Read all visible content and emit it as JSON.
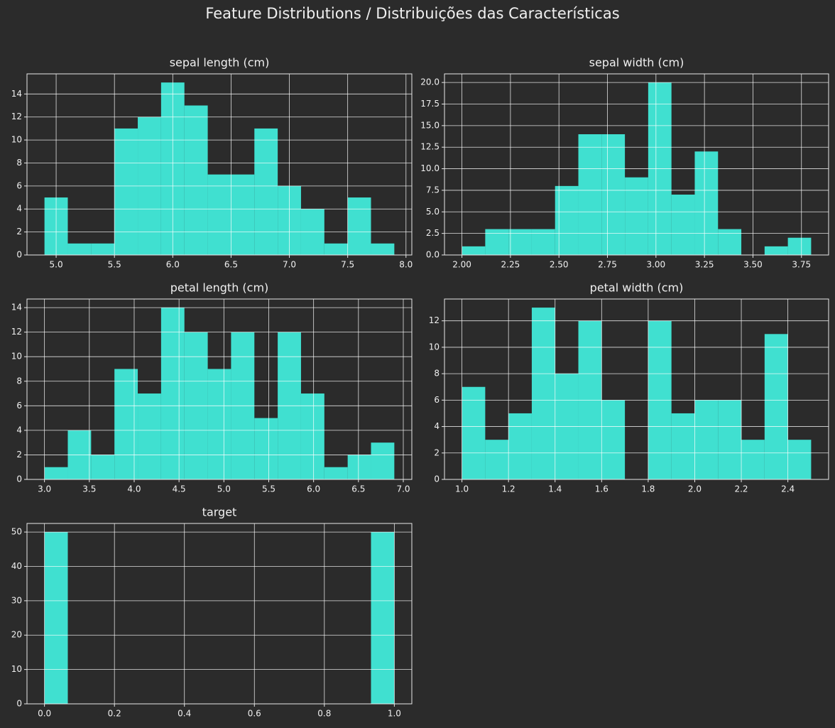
{
  "title": "Feature Distributions / Distribuições das Características",
  "chart_data": [
    {
      "type": "histogram",
      "title": "sepal length (cm)",
      "color": "#40e0d0",
      "grid": true,
      "bins": [
        4.9,
        5.1,
        5.3,
        5.5,
        5.7,
        5.9,
        6.1,
        6.3,
        6.5,
        6.7,
        6.9,
        7.1,
        7.3,
        7.5,
        7.7,
        7.9
      ],
      "values": [
        5,
        1,
        1,
        11,
        12,
        15,
        13,
        7,
        7,
        11,
        6,
        4,
        1,
        5,
        1
      ],
      "xlim": [
        4.75,
        8.05
      ],
      "ylim": [
        0,
        15.75
      ],
      "xticks": [
        {
          "value": 5,
          "label": "5.0"
        },
        {
          "value": 5.5,
          "label": "5.5"
        },
        {
          "value": 6,
          "label": "6.0"
        },
        {
          "value": 6.5,
          "label": "6.5"
        },
        {
          "value": 7,
          "label": "7.0"
        },
        {
          "value": 7.5,
          "label": "7.5"
        },
        {
          "value": 8,
          "label": "8.0"
        }
      ],
      "yticks": [
        0,
        2,
        4,
        6,
        8,
        10,
        12,
        14
      ]
    },
    {
      "type": "histogram",
      "title": "sepal width (cm)",
      "color": "#40e0d0",
      "grid": true,
      "bins": [
        2.0,
        2.12,
        2.24,
        2.36,
        2.48,
        2.6,
        2.72,
        2.84,
        2.96,
        3.08,
        3.2,
        3.32,
        3.44,
        3.56,
        3.68,
        3.8
      ],
      "values": [
        1,
        3,
        3,
        3,
        8,
        14,
        14,
        9,
        20,
        7,
        12,
        3,
        0,
        1,
        2
      ],
      "xlim": [
        1.91,
        3.89
      ],
      "ylim": [
        0,
        21
      ],
      "xticks": [
        {
          "value": 2,
          "label": "2.00"
        },
        {
          "value": 2.25,
          "label": "2.25"
        },
        {
          "value": 2.5,
          "label": "2.50"
        },
        {
          "value": 2.75,
          "label": "2.75"
        },
        {
          "value": 3,
          "label": "3.00"
        },
        {
          "value": 3.25,
          "label": "3.25"
        },
        {
          "value": 3.5,
          "label": "3.50"
        },
        {
          "value": 3.75,
          "label": "3.75"
        }
      ],
      "yticks": [
        {
          "value": 0,
          "label": "0.0"
        },
        2.5,
        {
          "value": 5,
          "label": "5.0"
        },
        7.5,
        {
          "value": 10,
          "label": "10.0"
        },
        12.5,
        {
          "value": 15,
          "label": "15.0"
        },
        17.5,
        {
          "value": 20,
          "label": "20.0"
        }
      ]
    },
    {
      "type": "histogram",
      "title": "petal length (cm)",
      "color": "#40e0d0",
      "grid": true,
      "bins": [
        3.0,
        3.26,
        3.52,
        3.78,
        4.04,
        4.3,
        4.56,
        4.82,
        5.08,
        5.34,
        5.6,
        5.86,
        6.12,
        6.38,
        6.64,
        6.9
      ],
      "values": [
        1,
        4,
        2,
        9,
        7,
        14,
        12,
        9,
        12,
        5,
        12,
        7,
        1,
        2,
        3
      ],
      "xlim": [
        2.805,
        7.095
      ],
      "ylim": [
        0,
        14.7
      ],
      "xticks": [
        {
          "value": 3,
          "label": "3.0"
        },
        3.5,
        {
          "value": 4,
          "label": "4.0"
        },
        4.5,
        {
          "value": 5,
          "label": "5.0"
        },
        5.5,
        {
          "value": 6,
          "label": "6.0"
        },
        6.5,
        {
          "value": 7,
          "label": "7.0"
        }
      ],
      "yticks": [
        0,
        2,
        4,
        6,
        8,
        10,
        12,
        14
      ]
    },
    {
      "type": "histogram",
      "title": "petal width (cm)",
      "color": "#40e0d0",
      "grid": true,
      "bins": [
        1.0,
        1.1,
        1.2,
        1.3,
        1.4,
        1.5,
        1.6,
        1.7,
        1.8,
        1.9,
        2.0,
        2.1,
        2.2,
        2.3,
        2.4,
        2.5
      ],
      "values": [
        7,
        3,
        5,
        13,
        8,
        12,
        6,
        0,
        12,
        5,
        6,
        6,
        3,
        11,
        3
      ],
      "xlim": [
        0.925,
        2.575
      ],
      "ylim": [
        0,
        13.65
      ],
      "xticks": [
        {
          "value": 1,
          "label": "1.0"
        },
        1.2,
        1.4,
        1.6,
        1.8,
        {
          "value": 2,
          "label": "2.0"
        },
        2.2,
        2.4
      ],
      "yticks": [
        0,
        2,
        4,
        6,
        8,
        10,
        12
      ]
    },
    {
      "type": "histogram",
      "title": "target",
      "color": "#40e0d0",
      "grid": true,
      "bins": [
        0,
        0.0667,
        0.1333,
        0.2,
        0.2667,
        0.3333,
        0.4,
        0.4667,
        0.5333,
        0.6,
        0.6667,
        0.7333,
        0.8,
        0.8667,
        0.9333,
        1
      ],
      "values": [
        50,
        0,
        0,
        0,
        0,
        0,
        0,
        0,
        0,
        0,
        0,
        0,
        0,
        0,
        50
      ],
      "xlim": [
        -0.05,
        1.05
      ],
      "ylim": [
        0,
        52.5
      ],
      "xticks": [
        {
          "value": 0,
          "label": "0.0"
        },
        0.2,
        0.4,
        0.6,
        0.8,
        {
          "value": 1,
          "label": "1.0"
        }
      ],
      "yticks": [
        0,
        10,
        20,
        30,
        40,
        50
      ]
    }
  ]
}
